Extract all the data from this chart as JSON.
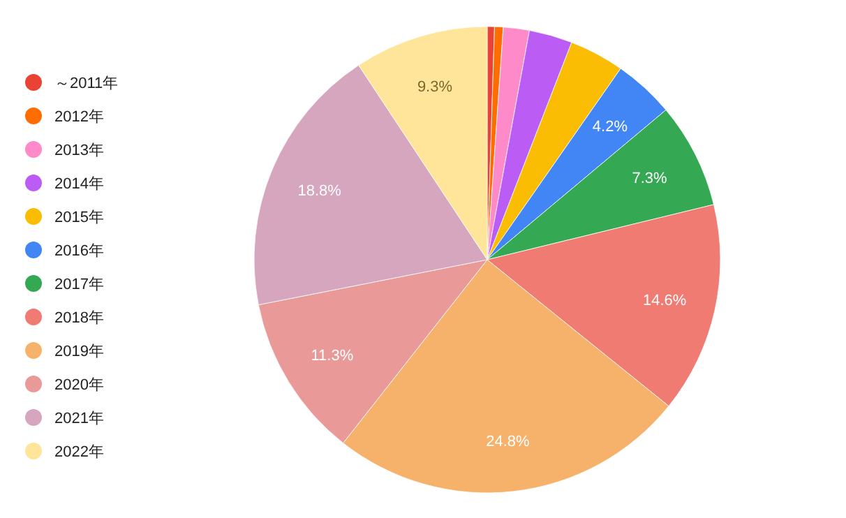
{
  "chart_data": {
    "type": "pie",
    "legend": "left",
    "categories": [
      "～2011年",
      "2012年",
      "2013年",
      "2014年",
      "2015年",
      "2016年",
      "2017年",
      "2018年",
      "2019年",
      "2020年",
      "2021年",
      "2022年"
    ],
    "values": [
      0.5,
      0.6,
      1.8,
      3.0,
      3.8,
      4.2,
      7.3,
      14.6,
      24.8,
      11.3,
      18.8,
      9.3
    ],
    "value_labels": [
      null,
      null,
      null,
      null,
      null,
      "4.2%",
      "7.3%",
      "14.6%",
      "24.8%",
      "11.3%",
      "18.8%",
      "9.3%"
    ],
    "colors": [
      "#ea4335",
      "#ff6d01",
      "#ff8ac9",
      "#bb5cf5",
      "#fbbc04",
      "#4285f4",
      "#34a853",
      "#f07b72",
      "#f6b26b",
      "#ea9999",
      "#d5a6bd",
      "#ffe599"
    ]
  }
}
